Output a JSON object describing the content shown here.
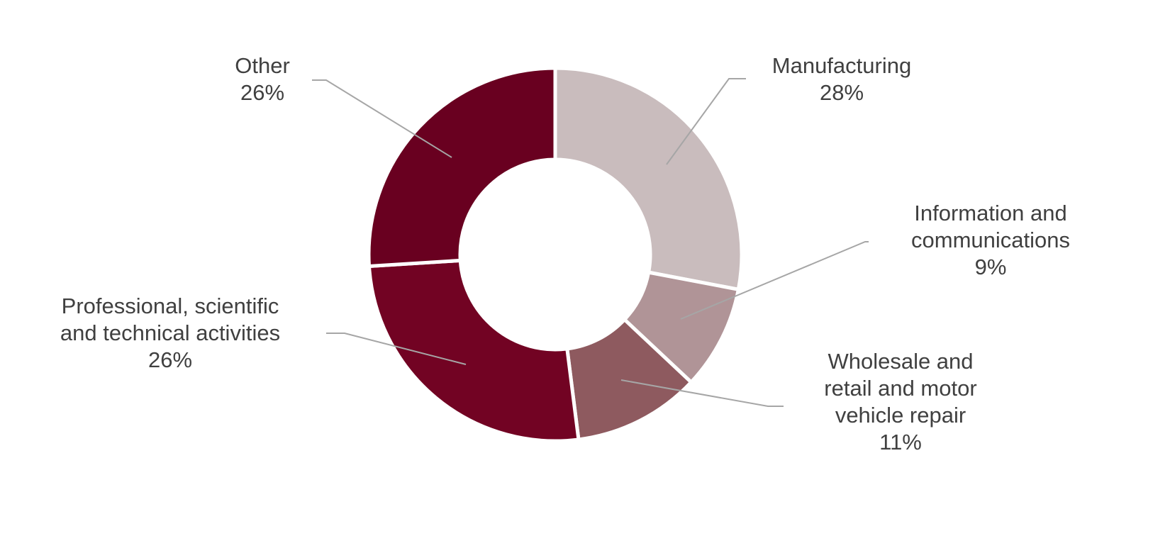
{
  "chart_data": {
    "type": "pie",
    "subtype": "donut",
    "title": "",
    "start_angle": "top, clockwise",
    "slices": [
      {
        "label": "Manufacturing",
        "value": 28,
        "value_label": "28%",
        "color": "#C9BCBD",
        "label_lines": [
          "Manufacturing",
          "28%"
        ]
      },
      {
        "label": "Information and communications",
        "value": 9,
        "value_label": "9%",
        "color": "#B09497",
        "label_lines": [
          "Information and",
          "communications",
          "9%"
        ]
      },
      {
        "label": "Wholesale and retail and motor vehicle repair",
        "value": 11,
        "value_label": "11%",
        "color": "#8E5A5F",
        "label_lines": [
          "Wholesale and",
          "retail and motor",
          "vehicle repair",
          "11%"
        ]
      },
      {
        "label": "Professional, scientific and technical activities",
        "value": 26,
        "value_label": "26%",
        "color": "#720323",
        "label_lines": [
          "Professional, scientific",
          "and technical activities",
          "26%"
        ]
      },
      {
        "label": "Other",
        "value": 26,
        "value_label": "26%",
        "color": "#690020",
        "label_lines": [
          "Other",
          "26%"
        ]
      }
    ],
    "leader_line_color": "#A6A6A6",
    "legend": "none (data labels with leader lines)"
  }
}
